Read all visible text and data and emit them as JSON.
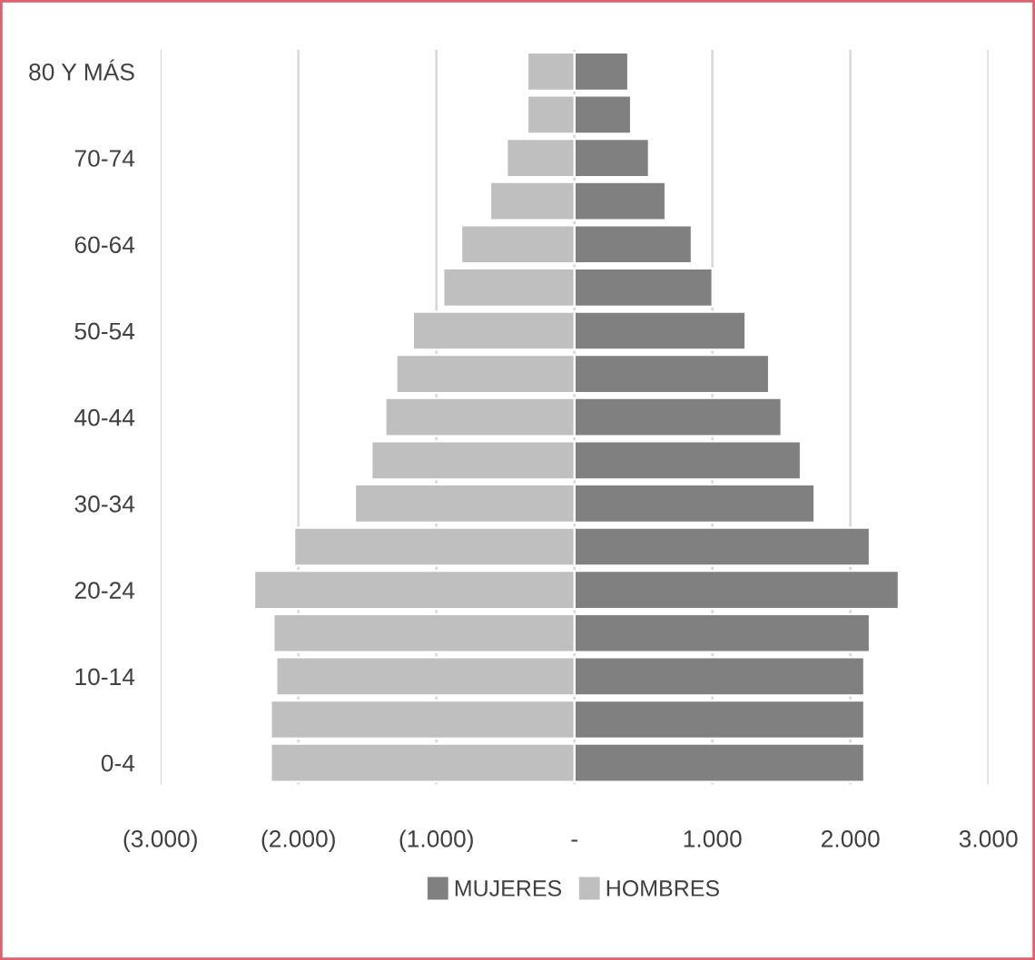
{
  "chart_data": {
    "type": "bar",
    "orientation": "horizontal",
    "stacked": true,
    "categories": [
      "80 Y MÁS",
      null,
      "70-74",
      null,
      "60-64",
      null,
      "50-54",
      null,
      "40-44",
      null,
      "30-34",
      null,
      "20-24",
      null,
      "10-14",
      null,
      "0-4"
    ],
    "series": [
      {
        "name": "MUJERES",
        "color": "#808080",
        "values": [
          390,
          410,
          540,
          660,
          850,
          1000,
          1240,
          1410,
          1500,
          1640,
          1740,
          2140,
          2350,
          2140,
          2100,
          2100,
          2100
        ]
      },
      {
        "name": "HOMBRES",
        "color": "#bfbfbf",
        "values": [
          -340,
          -340,
          -490,
          -610,
          -820,
          -950,
          -1170,
          -1290,
          -1370,
          -1470,
          -1590,
          -2030,
          -2320,
          -2180,
          -2160,
          -2200,
          -2200
        ]
      }
    ],
    "xlim": [
      -3000,
      3000
    ],
    "xticks": [
      {
        "value": -3000,
        "label": "(3.000)"
      },
      {
        "value": -2000,
        "label": "(2.000)"
      },
      {
        "value": -1000,
        "label": "(1.000)"
      },
      {
        "value": 0,
        "label": "-"
      },
      {
        "value": 1000,
        "label": "1.000"
      },
      {
        "value": 2000,
        "label": "2.000"
      },
      {
        "value": 3000,
        "label": "3.000"
      }
    ],
    "grid": "x",
    "legend": "bottom"
  }
}
